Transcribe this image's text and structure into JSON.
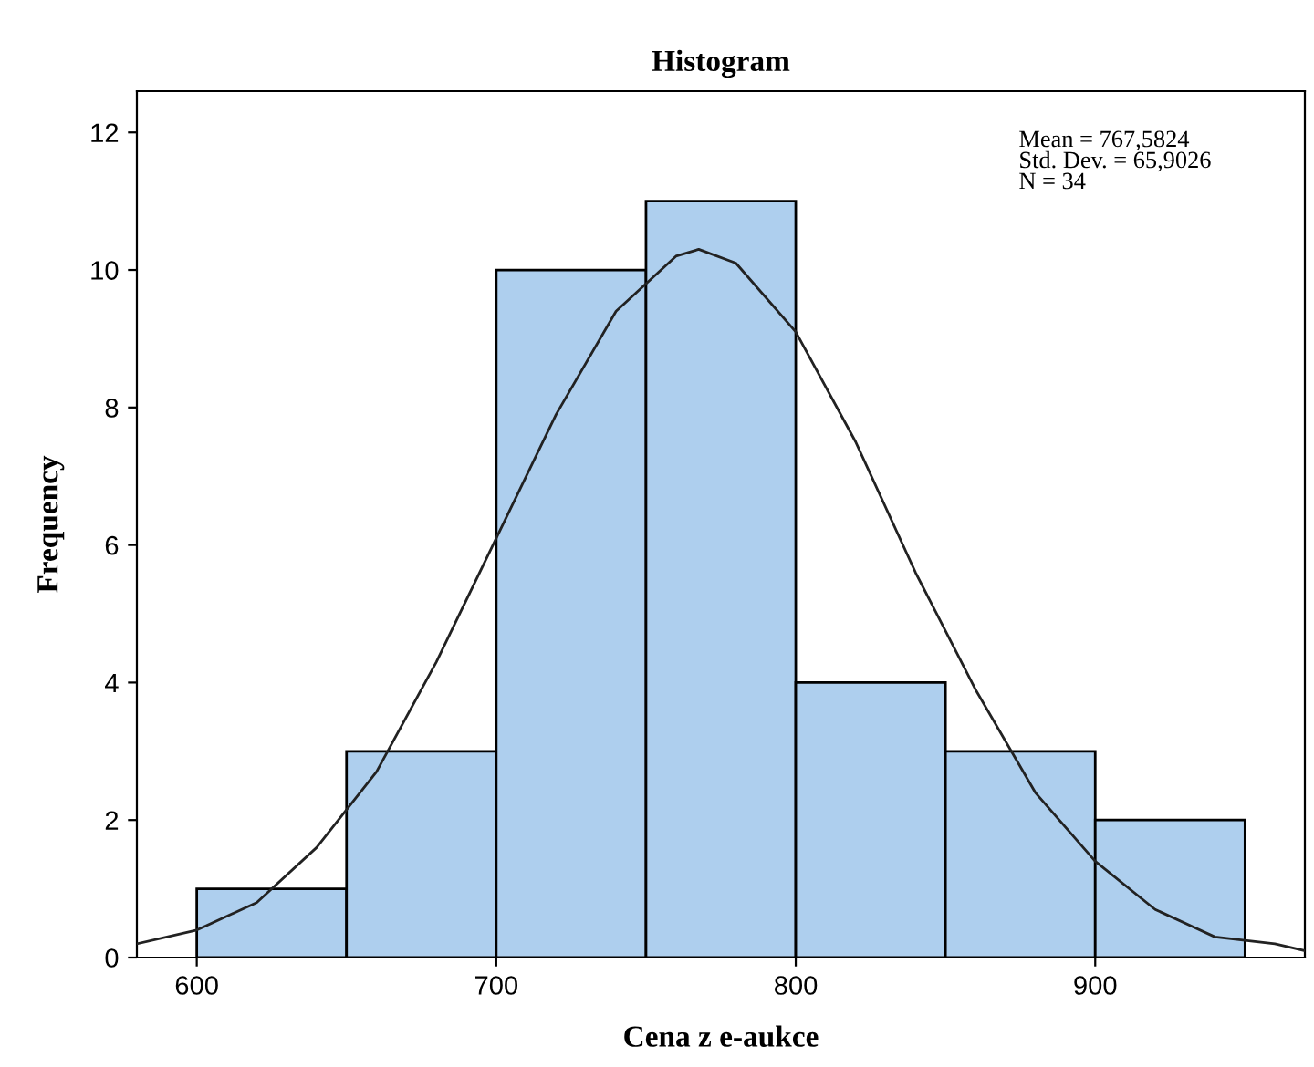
{
  "chart_data": {
    "type": "histogram",
    "title": "Histogram",
    "xlabel": "Cena z e-aukce",
    "ylabel": "Frequency",
    "bins": [
      600,
      650,
      700,
      750,
      800,
      850,
      900,
      950
    ],
    "values": [
      1,
      3,
      10,
      11,
      4,
      3,
      2
    ],
    "color": "#aecfee",
    "series": [
      {
        "type": "line",
        "color": "#222222",
        "x": [
          580,
          600,
          620,
          640,
          660,
          680,
          700,
          720,
          740,
          760,
          767.6,
          780,
          800,
          820,
          840,
          860,
          880,
          900,
          920,
          940,
          960,
          970
        ],
        "values": [
          0.2,
          0.4,
          0.8,
          1.6,
          2.7,
          4.3,
          6.1,
          7.9,
          9.4,
          10.2,
          10.3,
          10.1,
          9.1,
          7.5,
          5.6,
          3.9,
          2.4,
          1.4,
          0.7,
          0.3,
          0.2,
          0.1
        ]
      }
    ],
    "annotations": [
      "Mean = 767,5824\nStd. Dev. = 65,9026\nN = 34"
    ],
    "xlim": [
      580,
      970
    ],
    "ylim": [
      0,
      12.6
    ],
    "xticks": [
      600,
      700,
      800,
      900
    ],
    "yticks": [
      0,
      2,
      4,
      6,
      8,
      10,
      12
    ],
    "grid": false
  }
}
